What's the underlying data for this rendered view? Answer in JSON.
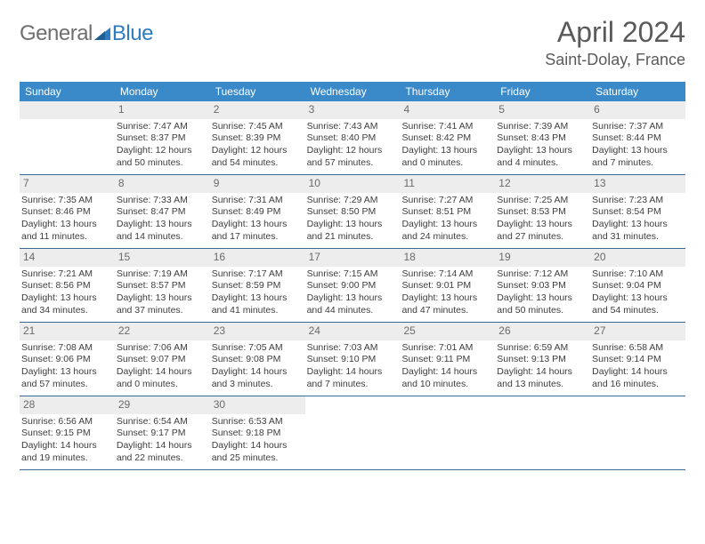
{
  "logo": {
    "text1": "General",
    "text2": "Blue",
    "color1": "#6f6f6f",
    "color2": "#2f7bbf",
    "icon_color": "#2f7bbf"
  },
  "title": "April 2024",
  "location": "Saint-Dolay, France",
  "header_bg": "#3a89c9",
  "border_color": "#3a6a95",
  "daynum_bg": "#ededed",
  "weekdays": [
    "Sunday",
    "Monday",
    "Tuesday",
    "Wednesday",
    "Thursday",
    "Friday",
    "Saturday"
  ],
  "weeks": [
    [
      {
        "num": "",
        "lines": []
      },
      {
        "num": "1",
        "lines": [
          "Sunrise: 7:47 AM",
          "Sunset: 8:37 PM",
          "Daylight: 12 hours",
          "and 50 minutes."
        ]
      },
      {
        "num": "2",
        "lines": [
          "Sunrise: 7:45 AM",
          "Sunset: 8:39 PM",
          "Daylight: 12 hours",
          "and 54 minutes."
        ]
      },
      {
        "num": "3",
        "lines": [
          "Sunrise: 7:43 AM",
          "Sunset: 8:40 PM",
          "Daylight: 12 hours",
          "and 57 minutes."
        ]
      },
      {
        "num": "4",
        "lines": [
          "Sunrise: 7:41 AM",
          "Sunset: 8:42 PM",
          "Daylight: 13 hours",
          "and 0 minutes."
        ]
      },
      {
        "num": "5",
        "lines": [
          "Sunrise: 7:39 AM",
          "Sunset: 8:43 PM",
          "Daylight: 13 hours",
          "and 4 minutes."
        ]
      },
      {
        "num": "6",
        "lines": [
          "Sunrise: 7:37 AM",
          "Sunset: 8:44 PM",
          "Daylight: 13 hours",
          "and 7 minutes."
        ]
      }
    ],
    [
      {
        "num": "7",
        "lines": [
          "Sunrise: 7:35 AM",
          "Sunset: 8:46 PM",
          "Daylight: 13 hours",
          "and 11 minutes."
        ]
      },
      {
        "num": "8",
        "lines": [
          "Sunrise: 7:33 AM",
          "Sunset: 8:47 PM",
          "Daylight: 13 hours",
          "and 14 minutes."
        ]
      },
      {
        "num": "9",
        "lines": [
          "Sunrise: 7:31 AM",
          "Sunset: 8:49 PM",
          "Daylight: 13 hours",
          "and 17 minutes."
        ]
      },
      {
        "num": "10",
        "lines": [
          "Sunrise: 7:29 AM",
          "Sunset: 8:50 PM",
          "Daylight: 13 hours",
          "and 21 minutes."
        ]
      },
      {
        "num": "11",
        "lines": [
          "Sunrise: 7:27 AM",
          "Sunset: 8:51 PM",
          "Daylight: 13 hours",
          "and 24 minutes."
        ]
      },
      {
        "num": "12",
        "lines": [
          "Sunrise: 7:25 AM",
          "Sunset: 8:53 PM",
          "Daylight: 13 hours",
          "and 27 minutes."
        ]
      },
      {
        "num": "13",
        "lines": [
          "Sunrise: 7:23 AM",
          "Sunset: 8:54 PM",
          "Daylight: 13 hours",
          "and 31 minutes."
        ]
      }
    ],
    [
      {
        "num": "14",
        "lines": [
          "Sunrise: 7:21 AM",
          "Sunset: 8:56 PM",
          "Daylight: 13 hours",
          "and 34 minutes."
        ]
      },
      {
        "num": "15",
        "lines": [
          "Sunrise: 7:19 AM",
          "Sunset: 8:57 PM",
          "Daylight: 13 hours",
          "and 37 minutes."
        ]
      },
      {
        "num": "16",
        "lines": [
          "Sunrise: 7:17 AM",
          "Sunset: 8:59 PM",
          "Daylight: 13 hours",
          "and 41 minutes."
        ]
      },
      {
        "num": "17",
        "lines": [
          "Sunrise: 7:15 AM",
          "Sunset: 9:00 PM",
          "Daylight: 13 hours",
          "and 44 minutes."
        ]
      },
      {
        "num": "18",
        "lines": [
          "Sunrise: 7:14 AM",
          "Sunset: 9:01 PM",
          "Daylight: 13 hours",
          "and 47 minutes."
        ]
      },
      {
        "num": "19",
        "lines": [
          "Sunrise: 7:12 AM",
          "Sunset: 9:03 PM",
          "Daylight: 13 hours",
          "and 50 minutes."
        ]
      },
      {
        "num": "20",
        "lines": [
          "Sunrise: 7:10 AM",
          "Sunset: 9:04 PM",
          "Daylight: 13 hours",
          "and 54 minutes."
        ]
      }
    ],
    [
      {
        "num": "21",
        "lines": [
          "Sunrise: 7:08 AM",
          "Sunset: 9:06 PM",
          "Daylight: 13 hours",
          "and 57 minutes."
        ]
      },
      {
        "num": "22",
        "lines": [
          "Sunrise: 7:06 AM",
          "Sunset: 9:07 PM",
          "Daylight: 14 hours",
          "and 0 minutes."
        ]
      },
      {
        "num": "23",
        "lines": [
          "Sunrise: 7:05 AM",
          "Sunset: 9:08 PM",
          "Daylight: 14 hours",
          "and 3 minutes."
        ]
      },
      {
        "num": "24",
        "lines": [
          "Sunrise: 7:03 AM",
          "Sunset: 9:10 PM",
          "Daylight: 14 hours",
          "and 7 minutes."
        ]
      },
      {
        "num": "25",
        "lines": [
          "Sunrise: 7:01 AM",
          "Sunset: 9:11 PM",
          "Daylight: 14 hours",
          "and 10 minutes."
        ]
      },
      {
        "num": "26",
        "lines": [
          "Sunrise: 6:59 AM",
          "Sunset: 9:13 PM",
          "Daylight: 14 hours",
          "and 13 minutes."
        ]
      },
      {
        "num": "27",
        "lines": [
          "Sunrise: 6:58 AM",
          "Sunset: 9:14 PM",
          "Daylight: 14 hours",
          "and 16 minutes."
        ]
      }
    ],
    [
      {
        "num": "28",
        "lines": [
          "Sunrise: 6:56 AM",
          "Sunset: 9:15 PM",
          "Daylight: 14 hours",
          "and 19 minutes."
        ]
      },
      {
        "num": "29",
        "lines": [
          "Sunrise: 6:54 AM",
          "Sunset: 9:17 PM",
          "Daylight: 14 hours",
          "and 22 minutes."
        ]
      },
      {
        "num": "30",
        "lines": [
          "Sunrise: 6:53 AM",
          "Sunset: 9:18 PM",
          "Daylight: 14 hours",
          "and 25 minutes."
        ]
      },
      {
        "num": "",
        "lines": []
      },
      {
        "num": "",
        "lines": []
      },
      {
        "num": "",
        "lines": []
      },
      {
        "num": "",
        "lines": []
      }
    ]
  ]
}
